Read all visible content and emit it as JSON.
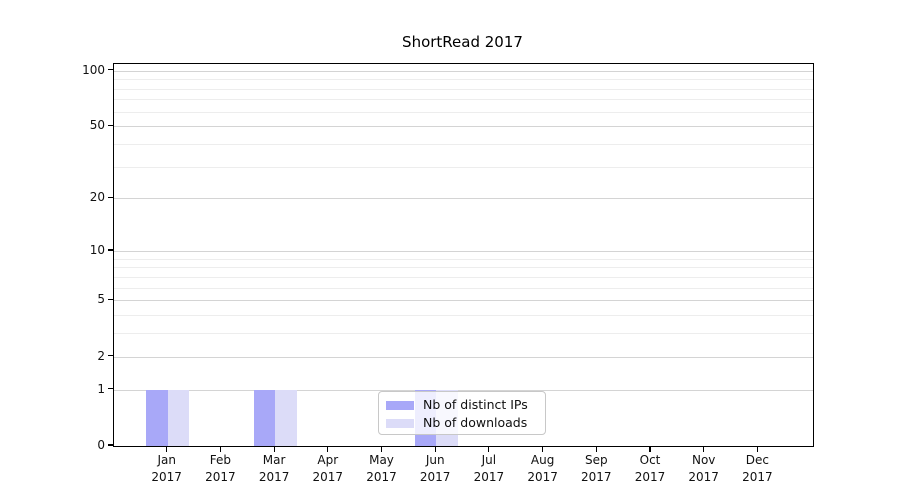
{
  "title": "ShortRead 2017",
  "chart_data": {
    "type": "bar",
    "title": "ShortRead 2017",
    "categories": [
      "Jan",
      "Feb",
      "Mar",
      "Apr",
      "May",
      "Jun",
      "Jul",
      "Aug",
      "Sep",
      "Oct",
      "Nov",
      "Dec"
    ],
    "x_year_label": "2017",
    "series": [
      {
        "name": "Nb of distinct IPs",
        "color": "#a8a8f8",
        "values": [
          1,
          0,
          1,
          0,
          0,
          1,
          0,
          0,
          0,
          0,
          0,
          0
        ]
      },
      {
        "name": "Nb of downloads",
        "color": "#dcdcf8",
        "values": [
          1,
          0,
          1,
          0,
          0,
          1,
          0,
          0,
          0,
          0,
          0,
          0
        ]
      }
    ],
    "y_axis": {
      "scale": "log1p",
      "major_ticks": [
        0,
        1,
        2,
        5,
        10,
        20,
        50,
        100
      ],
      "minor_ticks": [
        3,
        4,
        6,
        7,
        8,
        9,
        30,
        40,
        60,
        70,
        80,
        90
      ],
      "ylim": [
        0,
        110
      ]
    },
    "grid": "on",
    "legend_position": "lower center",
    "colors": {
      "grid_major": "#d4d4d4",
      "grid_minor": "#ededed",
      "spine": "#000000",
      "legend_border": "#c8c8c8"
    }
  }
}
